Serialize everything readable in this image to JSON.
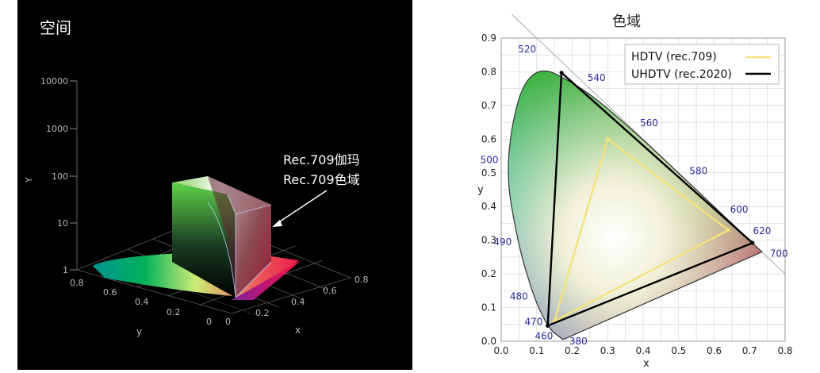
{
  "left": {
    "title": "空间",
    "y_axis_label": "Y",
    "y_ticks": [
      "1",
      "10",
      "100",
      "1000",
      "10000"
    ],
    "y_floor_label": "y",
    "y_floor_ticks": [
      "0",
      "0.2",
      "0.4",
      "0.6",
      "0.8"
    ],
    "x_floor_label": "x",
    "x_floor_ticks": [
      "0",
      "0.2",
      "0.4",
      "0.6",
      "0.8"
    ],
    "annotation_line1": "Rec.709伽玛",
    "annotation_line2": "Rec.709色域",
    "colors": {
      "background": "#000000",
      "text": "#ffffff",
      "grid": "#666666"
    }
  },
  "chart_data": [
    {
      "type": "scatter",
      "title": "空间",
      "xlabel": "x",
      "ylabel": "y",
      "zlabel": "Y",
      "z_scale": "log",
      "z_ticks": [
        1,
        10,
        100,
        1000,
        10000
      ],
      "x_ticks": [
        0,
        0.2,
        0.4,
        0.6,
        0.8
      ],
      "y_ticks": [
        0,
        0.2,
        0.4,
        0.6,
        0.8
      ]
    },
    {
      "type": "line",
      "title": "色域",
      "xlabel": "x",
      "ylabel": "y",
      "xlim": [
        0.0,
        0.8
      ],
      "ylim": [
        0.0,
        0.9
      ],
      "x_ticks": [
        0.0,
        0.1,
        0.2,
        0.3,
        0.4,
        0.5,
        0.6,
        0.7,
        0.8
      ],
      "y_ticks": [
        0.0,
        0.1,
        0.2,
        0.3,
        0.4,
        0.5,
        0.6,
        0.7,
        0.8,
        0.9
      ],
      "grid": true,
      "legend": "top-right",
      "spectral_locus": [
        {
          "label": "380",
          "x": 0.1741,
          "y": 0.005
        },
        {
          "label": "460",
          "x": 0.144,
          "y": 0.0297
        },
        {
          "label": "470",
          "x": 0.1241,
          "y": 0.0578
        },
        {
          "label": "480",
          "x": 0.0913,
          "y": 0.1327
        },
        {
          "label": "490",
          "x": 0.0454,
          "y": 0.295
        },
        {
          "label": "500",
          "x": 0.0082,
          "y": 0.5384
        },
        {
          "label": "520",
          "x": 0.0743,
          "y": 0.8338
        },
        {
          "label": "540",
          "x": 0.2296,
          "y": 0.7543
        },
        {
          "label": "560",
          "x": 0.3731,
          "y": 0.6245
        },
        {
          "label": "580",
          "x": 0.5125,
          "y": 0.4866
        },
        {
          "label": "600",
          "x": 0.627,
          "y": 0.3725
        },
        {
          "label": "620",
          "x": 0.6915,
          "y": 0.3083
        },
        {
          "label": "700",
          "x": 0.7347,
          "y": 0.2653
        }
      ],
      "series": [
        {
          "name": "HDTV (rec.709)",
          "color": "#f5e27a",
          "points": [
            [
              0.64,
              0.33
            ],
            [
              0.3,
              0.6
            ],
            [
              0.15,
              0.06
            ]
          ]
        },
        {
          "name": "UHDTV (rec.2020)",
          "color": "#000000",
          "points": [
            [
              0.708,
              0.292
            ],
            [
              0.17,
              0.797
            ],
            [
              0.131,
              0.046
            ]
          ]
        }
      ]
    }
  ],
  "right": {
    "title": "色域"
  }
}
